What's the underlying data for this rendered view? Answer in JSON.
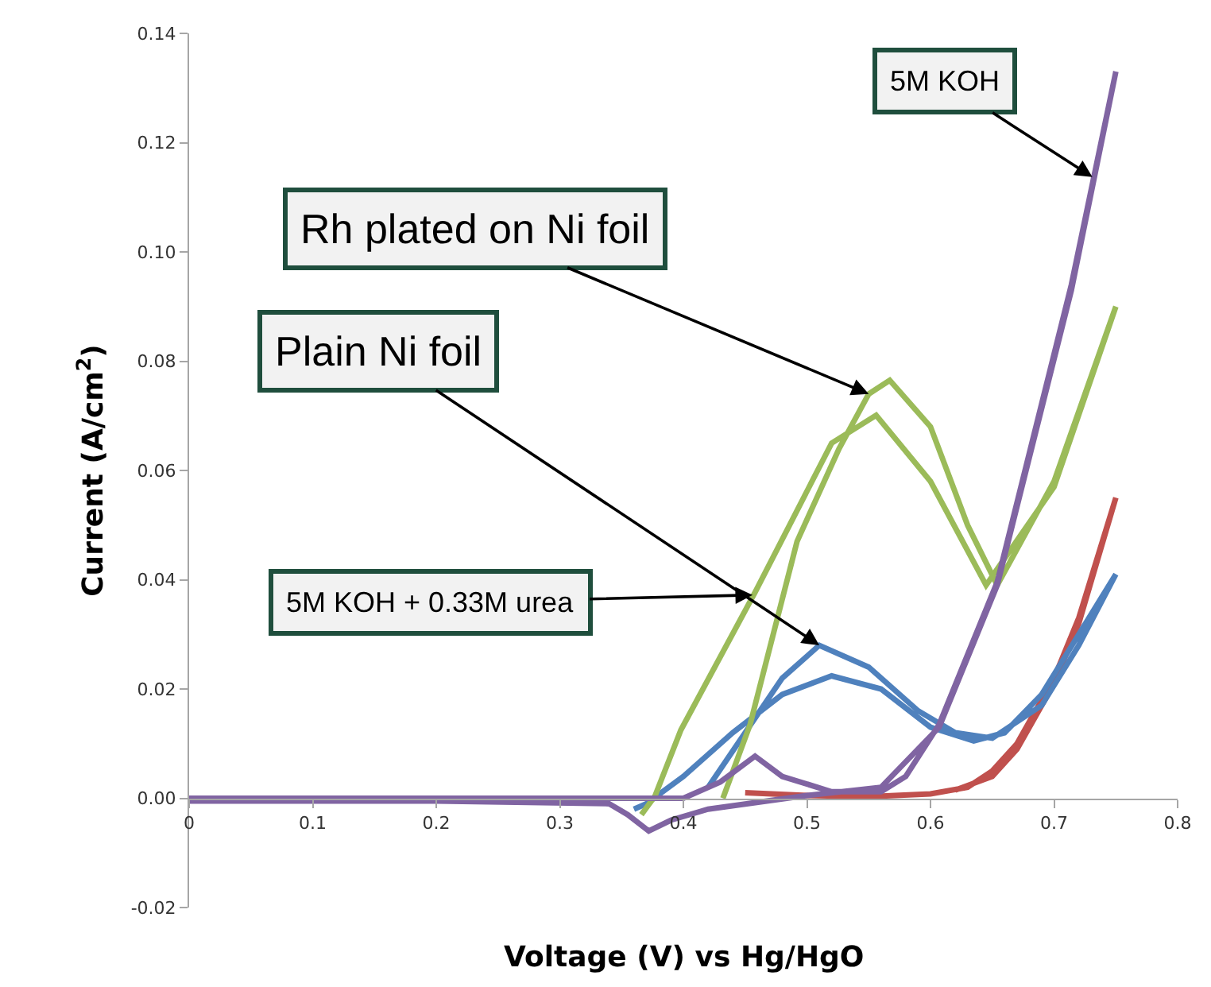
{
  "chart_data": {
    "type": "line",
    "xlabel": "Voltage (V) vs Hg/HgO",
    "ylabel": "Current (A/cm$^{2}$)",
    "xlim": [
      0,
      0.8
    ],
    "ylim": [
      -0.02,
      0.14
    ],
    "xticks": [
      0,
      0.1,
      0.2,
      0.3,
      0.4,
      0.5,
      0.6,
      0.7,
      0.8
    ],
    "yticks": [
      {
        "value": -0.02,
        "label": "-0.02"
      },
      {
        "value": 0,
        "label": "0.00"
      },
      {
        "value": 0.02,
        "label": "0.02"
      },
      {
        "value": 0.04,
        "label": "0.04"
      },
      {
        "value": 0.06,
        "label": "0.06"
      },
      {
        "value": 0.08,
        "label": "0.08"
      },
      {
        "value": 0.1,
        "label": "0.10"
      },
      {
        "value": 0.12,
        "label": "0.12"
      },
      {
        "value": 0.14,
        "label": "0.14"
      }
    ],
    "marker": "none",
    "line_style": "solid",
    "series": [
      {
        "color": "#c0504d",
        "x": [
          0.45,
          0.5,
          0.55,
          0.6,
          0.63,
          0.65,
          0.67,
          0.7,
          0.72,
          0.75,
          0.72,
          0.7,
          0.67,
          0.65,
          0.62
        ],
        "values": [
          0.001,
          0.0005,
          0.0003,
          0.0008,
          0.002,
          0.005,
          0.01,
          0.022,
          0.033,
          0.055,
          0.032,
          0.021,
          0.009,
          0.004,
          0.0015
        ]
      },
      {
        "color": "#4f81bd",
        "x": [
          0.42,
          0.45,
          0.48,
          0.51,
          0.55,
          0.59,
          0.62,
          0.65,
          0.69,
          0.72,
          0.75,
          0.72,
          0.69,
          0.66,
          0.635,
          0.6,
          0.56,
          0.52,
          0.48,
          0.44,
          0.4,
          0.37,
          0.36
        ],
        "values": [
          0.002,
          0.012,
          0.022,
          0.028,
          0.024,
          0.016,
          0.012,
          0.011,
          0.017,
          0.028,
          0.041,
          0.03,
          0.019,
          0.012,
          0.0105,
          0.013,
          0.02,
          0.0224,
          0.019,
          0.012,
          0.004,
          -0.001,
          -0.002
        ]
      },
      {
        "color": "#9bbb59",
        "x": [
          0.432,
          0.454,
          0.492,
          0.526,
          0.55,
          0.567,
          0.6,
          0.63,
          0.654,
          0.7,
          0.75,
          0.7,
          0.645,
          0.6,
          0.556,
          0.52,
          0.458,
          0.398,
          0.377,
          0.366
        ],
        "values": [
          0,
          0.0135,
          0.047,
          0.064,
          0.074,
          0.0765,
          0.068,
          0.05,
          0.039,
          0.058,
          0.09,
          0.057,
          0.039,
          0.058,
          0.0701,
          0.065,
          0.0377,
          0.0125,
          0.0004,
          -0.003
        ]
      },
      {
        "color": "#8064a2",
        "x": [
          0,
          0.2,
          0.4,
          0.43,
          0.458,
          0.48,
          0.52,
          0.56,
          0.58,
          0.607,
          0.654,
          0.714,
          0.75,
          0.714,
          0.654,
          0.607,
          0.56,
          0.5,
          0.42,
          0.39,
          0.372,
          0.355,
          0.34,
          0.2,
          0
        ],
        "values": [
          0,
          0,
          0,
          0.003,
          0.0077,
          0.004,
          0.0012,
          0.0012,
          0.004,
          0.0135,
          0.0396,
          0.094,
          0.133,
          0.093,
          0.039,
          0.013,
          0.002,
          0.0005,
          -0.002,
          -0.004,
          -0.006,
          -0.003,
          -0.001,
          -0.0005,
          -0.0005
        ]
      }
    ],
    "annotations": [
      {
        "text": "5M KOH",
        "x": 0.731,
        "y": 0.1137
      },
      {
        "text": "Rh plated on Ni foil",
        "x": 0.55,
        "y": 0.074
      },
      {
        "text": "Plain Ni foil",
        "x": 0.51,
        "y": 0.028
      },
      {
        "text": "5M KOH + 0.33M urea",
        "x": 0.456,
        "y": 0.0372
      }
    ]
  }
}
